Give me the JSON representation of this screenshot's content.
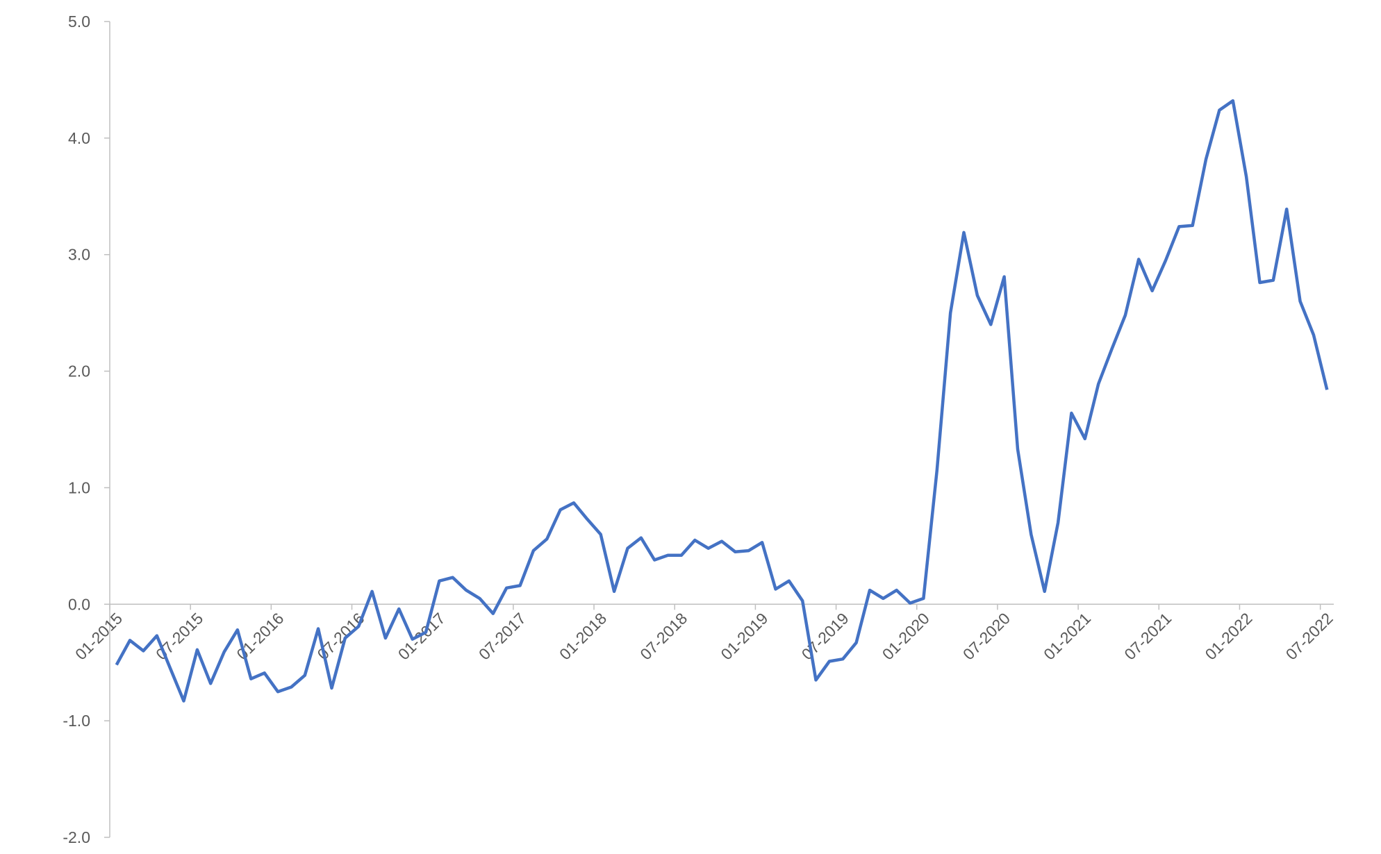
{
  "chart_data": {
    "type": "line",
    "categories": [
      "01-2015",
      null,
      null,
      null,
      null,
      null,
      "07-2015",
      null,
      null,
      null,
      null,
      null,
      "01-2016",
      null,
      null,
      null,
      null,
      null,
      "07-2016",
      null,
      null,
      null,
      null,
      null,
      "01-2017",
      null,
      null,
      null,
      null,
      null,
      "07-2017",
      null,
      null,
      null,
      null,
      null,
      "01-2018",
      null,
      null,
      null,
      null,
      null,
      "07-2018",
      null,
      null,
      null,
      null,
      null,
      "01-2019",
      null,
      null,
      null,
      null,
      null,
      "07-2019",
      null,
      null,
      null,
      null,
      null,
      "01-2020",
      null,
      null,
      null,
      null,
      null,
      "07-2020",
      null,
      null,
      null,
      null,
      null,
      "01-2021",
      null,
      null,
      null,
      null,
      null,
      "07-2021",
      null,
      null,
      null,
      null,
      null,
      "01-2022",
      null,
      null,
      null,
      null,
      null,
      "07-2022"
    ],
    "series": [
      {
        "color": "#4472c4",
        "values": [
          -0.52,
          -0.31,
          -0.4,
          -0.27,
          -0.55,
          -0.83,
          -0.39,
          -0.68,
          -0.41,
          -0.22,
          -0.64,
          -0.59,
          -0.75,
          -0.71,
          -0.61,
          -0.21,
          -0.72,
          -0.29,
          -0.19,
          0.11,
          -0.29,
          -0.04,
          -0.3,
          -0.24,
          0.2,
          0.23,
          0.12,
          0.05,
          -0.08,
          0.14,
          0.16,
          0.46,
          0.56,
          0.81,
          0.87,
          0.73,
          0.6,
          0.11,
          0.48,
          0.57,
          0.38,
          0.42,
          0.42,
          0.55,
          0.48,
          0.54,
          0.45,
          0.46,
          0.53,
          0.13,
          0.2,
          0.03,
          -0.65,
          -0.49,
          -0.47,
          -0.33,
          0.12,
          0.05,
          0.12,
          0.01,
          0.05,
          1.15,
          2.5,
          3.19,
          2.65,
          2.4,
          2.81,
          1.33,
          0.6,
          0.11,
          0.7,
          1.64,
          1.42,
          1.89,
          2.19,
          2.48,
          2.96,
          2.69,
          2.95,
          3.24,
          3.25,
          3.82,
          4.24,
          4.32,
          3.67,
          2.76,
          2.78,
          3.39,
          2.6,
          2.31,
          1.84
        ]
      }
    ],
    "ylim": [
      -2,
      5
    ],
    "yticks": [
      {
        "value": -2,
        "label": "-2.0"
      },
      {
        "value": -1,
        "label": "-1.0"
      },
      {
        "value": 0,
        "label": "0.0"
      },
      {
        "value": 1,
        "label": "1.0"
      },
      {
        "value": 2,
        "label": "2.0"
      },
      {
        "value": 3,
        "label": "3.0"
      },
      {
        "value": 4,
        "label": "4.0"
      },
      {
        "value": 5,
        "label": "5.0"
      }
    ]
  }
}
